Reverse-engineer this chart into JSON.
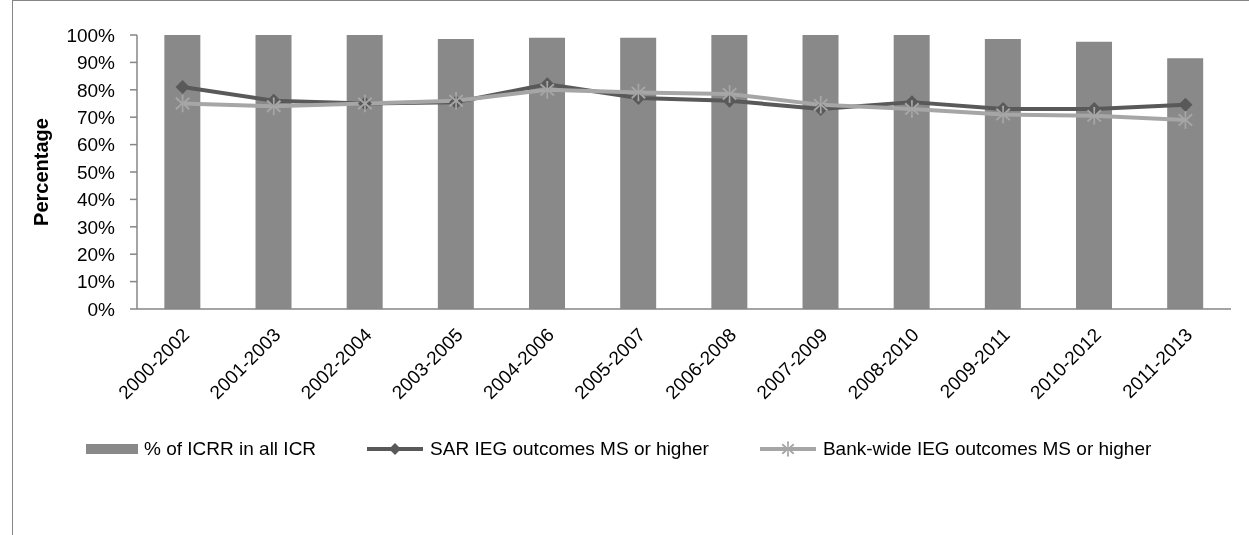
{
  "chart_data": {
    "type": "bar",
    "ylabel": "Percentage",
    "categories": [
      "2000-2002",
      "2001-2003",
      "2002-2004",
      "2003-2005",
      "2004-2006",
      "2005-2007",
      "2006-2008",
      "2007-2009",
      "2008-2010",
      "2009-2011",
      "2010-2012",
      "2011-2013"
    ],
    "series": [
      {
        "name": "% of ICRR in all ICR",
        "color": "#898989",
        "values": [
          100,
          100,
          100,
          98.5,
          99,
          99,
          100,
          100,
          100,
          98.5,
          97.5,
          91.5
        ]
      },
      {
        "name": "SAR IEG outcomes MS or higher",
        "type": "line",
        "color": "#595959",
        "marker": "diamond",
        "values": [
          81,
          76,
          75,
          75.5,
          82,
          77,
          76,
          73,
          75.5,
          73,
          73,
          74.5
        ]
      },
      {
        "name": "Bank-wide IEG outcomes MS or higher",
        "type": "line",
        "color": "#a6a6a6",
        "marker": "star",
        "values": [
          75,
          74,
          75,
          76,
          80,
          79,
          78.5,
          74.5,
          73,
          71,
          70.5,
          69
        ]
      }
    ],
    "ylim": [
      0,
      100
    ],
    "yticks": [
      {
        "value": 0,
        "label": "0%"
      },
      {
        "value": 10,
        "label": "10%"
      },
      {
        "value": 20,
        "label": "20%"
      },
      {
        "value": 30,
        "label": "30%"
      },
      {
        "value": 40,
        "label": "40%"
      },
      {
        "value": 50,
        "label": "50%"
      },
      {
        "value": 60,
        "label": "60%"
      },
      {
        "value": 70,
        "label": "70%"
      },
      {
        "value": 80,
        "label": "80%"
      },
      {
        "value": 90,
        "label": "90%"
      },
      {
        "value": 100,
        "label": "100%"
      }
    ],
    "legend": "bottom"
  }
}
